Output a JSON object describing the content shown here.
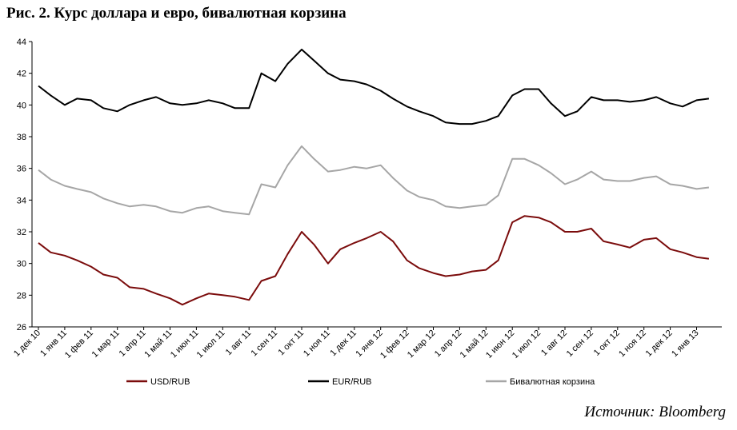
{
  "title": "Рис. 2. Курс доллара и евро, бивалютная корзина",
  "source": "Источник: Bloomberg",
  "colors": {
    "usd": "#7b0c0c",
    "eur": "#000000",
    "basket": "#a6a6a6"
  },
  "chart_data": {
    "type": "line",
    "title": "Рис. 2. Курс доллара и евро, бивалютная корзина",
    "xlabel": "",
    "ylabel": "",
    "ylim": [
      26,
      44
    ],
    "yticks": [
      26,
      28,
      30,
      32,
      34,
      36,
      38,
      40,
      42,
      44
    ],
    "x_tick_labels": [
      "1 дек 10",
      "1 янв 11",
      "1 фев 11",
      "1 мар 11",
      "1 апр 11",
      "1 май 11",
      "1 июн 11",
      "1 июл 11",
      "1 авг 11",
      "1 сен 11",
      "1 окт 11",
      "1 ноя 11",
      "1 дек 11",
      "1 янв 12",
      "1 фев 12",
      "1 мар 12",
      "1 апр 12",
      "1 май 12",
      "1 июн 12",
      "1 июл 12",
      "1 авг 12",
      "1 сен 12",
      "1 окт 12",
      "1 ноя 12",
      "1 дек 12",
      "1 янв 13"
    ],
    "grid": false,
    "legend_position": "bottom",
    "series": [
      {
        "name": "USD/RUB",
        "x": [
          "1 дек 10",
          "15 дек 10",
          "1 янв 11",
          "15 янв 11",
          "1 фев 11",
          "15 фев 11",
          "1 мар 11",
          "15 мар 11",
          "1 апр 11",
          "15 апр 11",
          "1 май 11",
          "15 май 11",
          "1 июн 11",
          "15 июн 11",
          "1 июл 11",
          "15 июл 11",
          "1 авг 11",
          "15 авг 11",
          "1 сен 11",
          "15 сен 11",
          "1 окт 11",
          "15 окт 11",
          "1 ноя 11",
          "15 ноя 11",
          "1 дек 11",
          "15 дек 11",
          "1 янв 12",
          "15 янв 12",
          "1 фев 12",
          "15 фев 12",
          "1 мар 12",
          "15 мар 12",
          "1 апр 12",
          "15 апр 12",
          "1 май 12",
          "15 май 12",
          "1 июн 12",
          "15 июн 12",
          "1 июл 12",
          "15 июл 12",
          "1 авг 12",
          "15 авг 12",
          "1 сен 12",
          "15 сен 12",
          "1 окт 12",
          "15 окт 12",
          "1 ноя 12",
          "15 ноя 12",
          "1 дек 12",
          "15 дек 12",
          "1 янв 13",
          "15 янв 13"
        ],
        "values": [
          31.3,
          30.7,
          30.5,
          30.2,
          29.8,
          29.3,
          29.1,
          28.5,
          28.4,
          28.1,
          27.8,
          27.4,
          27.8,
          28.1,
          28.0,
          27.9,
          27.7,
          28.9,
          29.2,
          30.6,
          32.0,
          31.2,
          30.0,
          30.9,
          31.3,
          31.6,
          32.0,
          31.4,
          30.2,
          29.7,
          29.4,
          29.2,
          29.3,
          29.5,
          29.6,
          30.2,
          32.6,
          33.0,
          32.9,
          32.6,
          32.0,
          32.0,
          32.2,
          31.4,
          31.2,
          31.0,
          31.5,
          31.6,
          30.9,
          30.7,
          30.4,
          30.3
        ]
      },
      {
        "name": "EUR/RUB",
        "x": [
          "1 дек 10",
          "15 дек 10",
          "1 янв 11",
          "15 янв 11",
          "1 фев 11",
          "15 фев 11",
          "1 мар 11",
          "15 мар 11",
          "1 апр 11",
          "15 апр 11",
          "1 май 11",
          "15 май 11",
          "1 июн 11",
          "15 июн 11",
          "1 июл 11",
          "15 июл 11",
          "1 авг 11",
          "15 авг 11",
          "1 сен 11",
          "15 сен 11",
          "1 окт 11",
          "15 окт 11",
          "1 ноя 11",
          "15 ноя 11",
          "1 дек 11",
          "15 дек 11",
          "1 янв 12",
          "15 янв 12",
          "1 фев 12",
          "15 фев 12",
          "1 мар 12",
          "15 мар 12",
          "1 апр 12",
          "15 апр 12",
          "1 май 12",
          "15 май 12",
          "1 июн 12",
          "15 июн 12",
          "1 июл 12",
          "15 июл 12",
          "1 авг 12",
          "15 авг 12",
          "1 сен 12",
          "15 сен 12",
          "1 окт 12",
          "15 окт 12",
          "1 ноя 12",
          "15 ноя 12",
          "1 дек 12",
          "15 дек 12",
          "1 янв 13",
          "15 янв 13"
        ],
        "values": [
          41.2,
          40.6,
          40.0,
          40.4,
          40.3,
          39.8,
          39.6,
          40.0,
          40.3,
          40.5,
          40.1,
          40.0,
          40.1,
          40.3,
          40.1,
          39.8,
          39.8,
          42.0,
          41.5,
          42.6,
          43.5,
          42.8,
          42.0,
          41.6,
          41.5,
          41.3,
          40.9,
          40.4,
          39.9,
          39.6,
          39.3,
          38.9,
          38.8,
          38.8,
          39.0,
          39.3,
          40.6,
          41.0,
          41.0,
          40.1,
          39.3,
          39.6,
          40.5,
          40.3,
          40.3,
          40.2,
          40.3,
          40.5,
          40.1,
          39.9,
          40.3,
          40.4
        ]
      },
      {
        "name": "Бивалютная корзина",
        "x": [
          "1 дек 10",
          "15 дек 10",
          "1 янв 11",
          "15 янв 11",
          "1 фев 11",
          "15 фев 11",
          "1 мар 11",
          "15 мар 11",
          "1 апр 11",
          "15 апр 11",
          "1 май 11",
          "15 май 11",
          "1 июн 11",
          "15 июн 11",
          "1 июл 11",
          "15 июл 11",
          "1 авг 11",
          "15 авг 11",
          "1 сен 11",
          "15 сен 11",
          "1 окт 11",
          "15 окт 11",
          "1 ноя 11",
          "15 ноя 11",
          "1 дек 11",
          "15 дек 11",
          "1 янв 12",
          "15 янв 12",
          "1 фев 12",
          "15 фев 12",
          "1 мар 12",
          "15 мар 12",
          "1 апр 12",
          "15 апр 12",
          "1 май 12",
          "15 май 12",
          "1 июн 12",
          "15 июн 12",
          "1 июл 12",
          "15 июл 12",
          "1 авг 12",
          "15 авг 12",
          "1 сен 12",
          "15 сен 12",
          "1 окт 12",
          "15 окт 12",
          "1 ноя 12",
          "15 ноя 12",
          "1 дек 12",
          "15 дек 12",
          "1 янв 13",
          "15 янв 13"
        ],
        "values": [
          35.9,
          35.3,
          34.9,
          34.7,
          34.5,
          34.1,
          33.8,
          33.6,
          33.7,
          33.6,
          33.3,
          33.2,
          33.5,
          33.6,
          33.3,
          33.2,
          33.1,
          35.0,
          34.8,
          36.2,
          37.4,
          36.6,
          35.8,
          35.9,
          36.1,
          36.0,
          36.2,
          35.4,
          34.6,
          34.2,
          34.0,
          33.6,
          33.5,
          33.6,
          33.7,
          34.3,
          36.6,
          36.6,
          36.2,
          35.7,
          35.0,
          35.3,
          35.8,
          35.3,
          35.2,
          35.2,
          35.4,
          35.5,
          35.0,
          34.9,
          34.7,
          34.8
        ]
      }
    ]
  }
}
